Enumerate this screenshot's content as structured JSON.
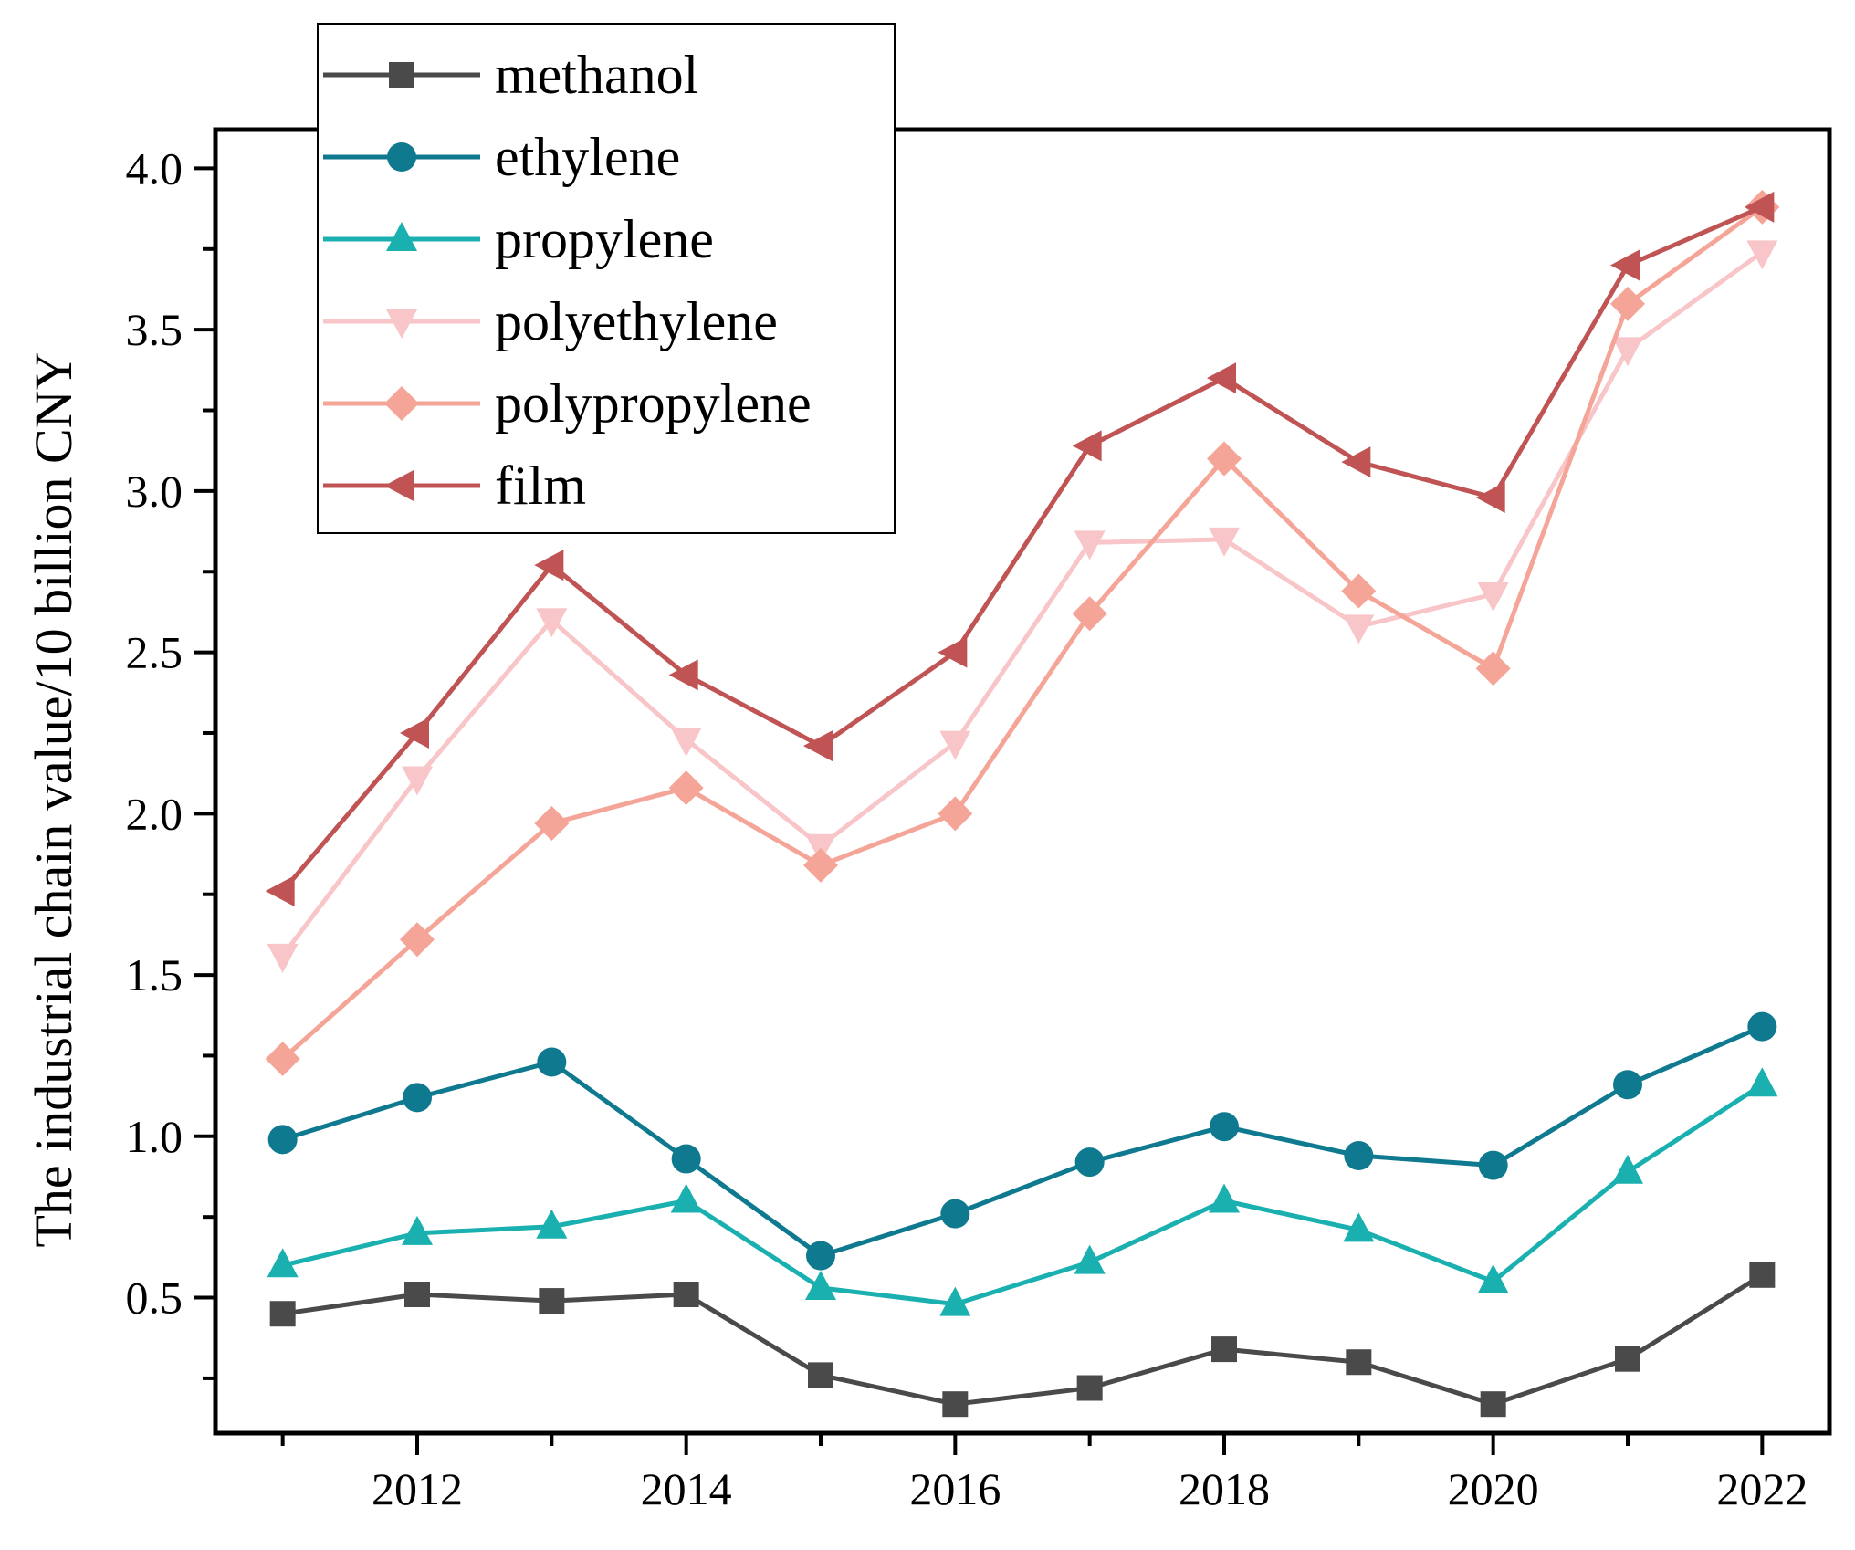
{
  "chart_data": {
    "type": "line",
    "title": "",
    "xlabel": "",
    "ylabel": "The industrial chain value/10 billion CNY",
    "x": [
      2011,
      2012,
      2013,
      2014,
      2015,
      2016,
      2017,
      2018,
      2019,
      2020,
      2021,
      2022
    ],
    "xlim": [
      2010.5,
      2022.5
    ],
    "ylim": [
      0.08,
      4.12
    ],
    "x_ticks": [
      2012,
      2014,
      2016,
      2018,
      2020,
      2022
    ],
    "x_tick_labels": [
      "2012",
      "2014",
      "2016",
      "2018",
      "2020",
      "2022"
    ],
    "y_ticks": [
      0.5,
      1.0,
      1.5,
      2.0,
      2.5,
      3.0,
      3.5,
      4.0
    ],
    "y_tick_labels": [
      "0.5",
      "1.0",
      "1.5",
      "2.0",
      "2.5",
      "3.0",
      "3.5",
      "4.0"
    ],
    "grid": false,
    "legend_position": "top-left",
    "series": [
      {
        "name": "methanol",
        "color": "#4a4a4a",
        "marker": "square",
        "values": [
          0.45,
          0.51,
          0.49,
          0.51,
          0.26,
          0.17,
          0.22,
          0.34,
          0.3,
          0.17,
          0.31,
          0.57
        ]
      },
      {
        "name": "ethylene",
        "color": "#0f7a8f",
        "marker": "circle",
        "values": [
          0.99,
          1.12,
          1.23,
          0.93,
          0.63,
          0.76,
          0.92,
          1.03,
          0.94,
          0.91,
          1.16,
          1.34
        ]
      },
      {
        "name": "propylene",
        "color": "#1ab0b0",
        "marker": "triangle-up",
        "values": [
          0.6,
          0.7,
          0.72,
          0.8,
          0.53,
          0.48,
          0.61,
          0.8,
          0.71,
          0.55,
          0.89,
          1.16
        ]
      },
      {
        "name": "polyethylene",
        "color": "#f8c6c9",
        "marker": "triangle-down",
        "values": [
          1.56,
          2.11,
          2.6,
          2.23,
          1.9,
          2.22,
          2.84,
          2.85,
          2.58,
          2.68,
          3.44,
          3.74
        ]
      },
      {
        "name": "polypropylene",
        "color": "#f5a598",
        "marker": "diamond",
        "values": [
          1.24,
          1.61,
          1.97,
          2.08,
          1.84,
          2.0,
          2.62,
          3.1,
          2.69,
          2.45,
          3.58,
          3.88
        ]
      },
      {
        "name": "film",
        "color": "#c05454",
        "marker": "triangle-left",
        "values": [
          1.76,
          2.25,
          2.77,
          2.43,
          2.21,
          2.5,
          3.14,
          3.35,
          3.09,
          2.98,
          3.7,
          3.88
        ]
      }
    ]
  }
}
